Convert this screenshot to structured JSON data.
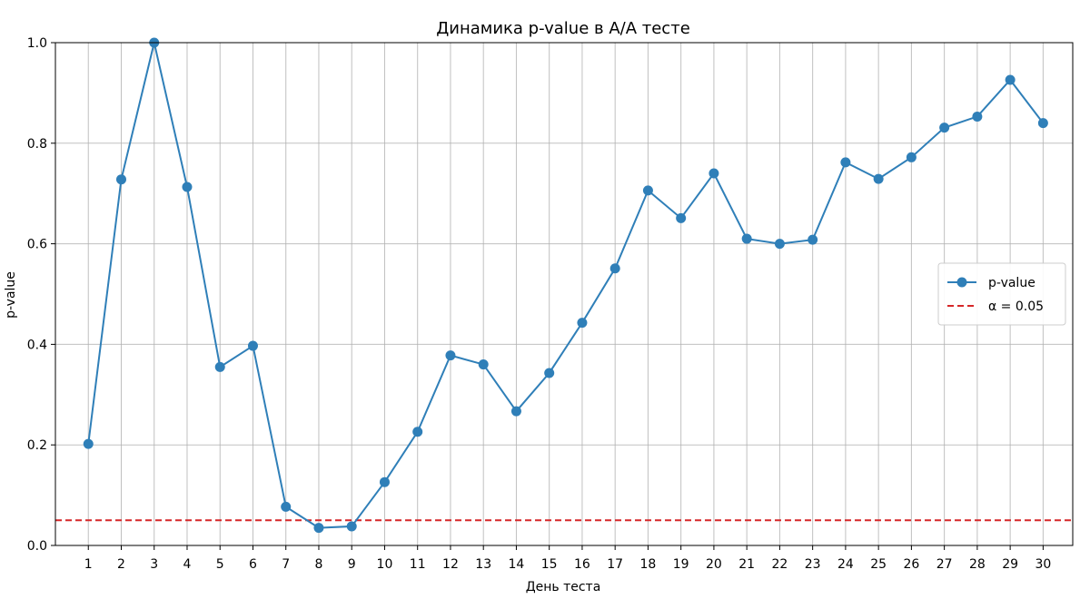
{
  "chart_data": {
    "type": "line",
    "title": "Динамика p-value в A/A тесте",
    "xlabel": "День теста",
    "ylabel": "p-value",
    "x": [
      1,
      2,
      3,
      4,
      5,
      6,
      7,
      8,
      9,
      10,
      11,
      12,
      13,
      14,
      15,
      16,
      17,
      18,
      19,
      20,
      21,
      22,
      23,
      24,
      25,
      26,
      27,
      28,
      29,
      30
    ],
    "series": [
      {
        "name": "p-value",
        "color": "#2f7fb8",
        "values": [
          0.202,
          0.728,
          1.0,
          0.713,
          0.355,
          0.397,
          0.077,
          0.035,
          0.038,
          0.126,
          0.226,
          0.378,
          0.36,
          0.267,
          0.343,
          0.443,
          0.551,
          0.706,
          0.651,
          0.74,
          0.61,
          0.6,
          0.608,
          0.762,
          0.729,
          0.772,
          0.831,
          0.853,
          0.926,
          0.84
        ]
      }
    ],
    "reference_line": {
      "name": "α = 0.05",
      "value": 0.05,
      "color": "#d62728",
      "style": "dashed"
    },
    "xlim": [
      0.0,
      30.9
    ],
    "ylim": [
      0.0,
      1.0
    ],
    "yticks": [
      "0.0",
      "0.2",
      "0.4",
      "0.6",
      "0.8",
      "1.0"
    ],
    "xticks": [
      "1",
      "2",
      "3",
      "4",
      "5",
      "6",
      "7",
      "8",
      "9",
      "10",
      "11",
      "12",
      "13",
      "14",
      "15",
      "16",
      "17",
      "18",
      "19",
      "20",
      "21",
      "22",
      "23",
      "24",
      "25",
      "26",
      "27",
      "28",
      "29",
      "30"
    ],
    "grid": true,
    "legend_position": "center-right"
  }
}
